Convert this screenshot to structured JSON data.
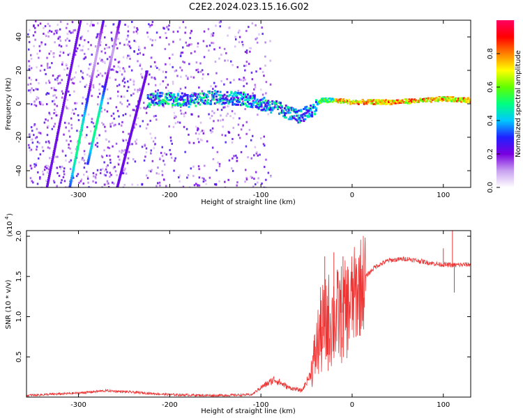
{
  "title": "C2E2.2024.023.15.16.G02",
  "chart_data": [
    {
      "type": "heatmap",
      "xlabel": "Height of straight line (km)",
      "ylabel": "Frequency (Hz)",
      "xlim": [
        -357,
        130
      ],
      "ylim": [
        -50,
        50
      ],
      "xticks": [
        -300,
        -200,
        -100,
        0,
        100
      ],
      "yticks": [
        -40,
        -20,
        0,
        20,
        40
      ],
      "colorbar": {
        "label": "Normalized spectral amplitude",
        "range": [
          0,
          1
        ],
        "ticks": [
          "0.0",
          "0.2",
          "0.4",
          "0.6",
          "0.8"
        ],
        "colormap": [
          "#ffffff",
          "#c8a0f0",
          "#7a00e0",
          "#2020ff",
          "#00c8ff",
          "#00ff80",
          "#60ff00",
          "#ffff00",
          "#ff8000",
          "#ff0000",
          "#ff0060"
        ]
      },
      "ridge": [
        [
          -220,
          3
        ],
        [
          -200,
          3
        ],
        [
          -180,
          2
        ],
        [
          -150,
          4
        ],
        [
          -120,
          3
        ],
        [
          -100,
          0
        ],
        [
          -80,
          -3
        ],
        [
          -60,
          -8
        ],
        [
          -45,
          -4
        ],
        [
          -35,
          2
        ],
        [
          -20,
          2
        ],
        [
          0,
          1
        ],
        [
          40,
          1
        ],
        [
          80,
          2
        ],
        [
          100,
          3
        ],
        [
          130,
          2
        ]
      ],
      "strong_segment": [
        -40,
        130
      ],
      "lines": [
        {
          "x0": -335,
          "f0": -50,
          "x1": -298,
          "f1": 50
        },
        {
          "x0": -310,
          "f0": -50,
          "x1": -273,
          "f1": 50
        },
        {
          "x0": -290,
          "f0": -35,
          "x1": -255,
          "f1": 50
        },
        {
          "x0": -258,
          "f0": -50,
          "x1": -225,
          "f1": 20
        }
      ],
      "grid": false
    },
    {
      "type": "line",
      "xlabel": "Height of straight line (km)",
      "ylabel": "SNR (10 * v/v)",
      "multiplier_label": "(x10",
      "multiplier_exp": "4",
      "xlim": [
        -357,
        130
      ],
      "ylim": [
        0,
        2.07
      ],
      "xticks": [
        -300,
        -200,
        -100,
        0,
        100
      ],
      "yticks": [
        "0.5",
        "1.0",
        "1.5",
        "2.0"
      ],
      "color": "#ee3333",
      "envelope": [
        [
          -357,
          0.02
        ],
        [
          -300,
          0.05
        ],
        [
          -270,
          0.08
        ],
        [
          -240,
          0.06
        ],
        [
          -200,
          0.03
        ],
        [
          -150,
          0.02
        ],
        [
          -110,
          0.03
        ],
        [
          -100,
          0.12
        ],
        [
          -85,
          0.22
        ],
        [
          -70,
          0.12
        ],
        [
          -55,
          0.08
        ],
        [
          -45,
          0.3
        ],
        [
          -35,
          0.8
        ],
        [
          -25,
          0.95
        ],
        [
          -15,
          1.0
        ],
        [
          -5,
          1.1
        ],
        [
          5,
          1.3
        ],
        [
          15,
          1.5
        ],
        [
          25,
          1.62
        ],
        [
          40,
          1.7
        ],
        [
          60,
          1.72
        ],
        [
          80,
          1.68
        ],
        [
          95,
          1.65
        ],
        [
          110,
          1.64
        ],
        [
          130,
          1.65
        ]
      ],
      "spikes": [
        [
          -30,
          1.75
        ],
        [
          -20,
          1.8
        ],
        [
          -10,
          1.75
        ],
        [
          110,
          2.07
        ],
        [
          100,
          1.85
        ],
        [
          112,
          1.3
        ]
      ],
      "grid": false
    }
  ]
}
